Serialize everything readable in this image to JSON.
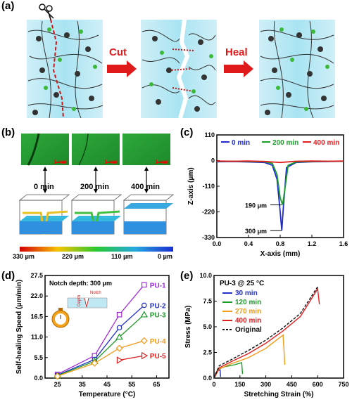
{
  "panels": {
    "a": "(a)",
    "b": "(b)",
    "c": "(c)",
    "d": "(d)",
    "e": "(e)"
  },
  "panel_a": {
    "cut_label": "Cut",
    "heal_label": "Heal"
  },
  "panel_b": {
    "times": [
      "0 min",
      "200 min",
      "400 min"
    ],
    "scale_bar": "1 mm",
    "colorbar_labels": [
      "330 μm",
      "220 μm",
      "110 μm",
      "0 μm"
    ]
  },
  "chart_data": [
    {
      "panel": "(c)",
      "type": "line",
      "xlabel": "X-axis (mm)",
      "ylabel": "Z-axis (μm)",
      "xlim": [
        0.0,
        1.6
      ],
      "ylim": [
        -330,
        110
      ],
      "xticks": [
        "0.0",
        "0.4",
        "0.8",
        "1.2",
        "1.6"
      ],
      "yticks": [
        "110",
        "0",
        "-110",
        "-220",
        "-330"
      ],
      "legend_position": "top",
      "annotations": [
        "190 μm",
        "300 μm"
      ],
      "series": [
        {
          "name": "0 min",
          "color": "#1f2bd1",
          "x": [
            0.0,
            0.2,
            0.4,
            0.6,
            0.7,
            0.76,
            0.8,
            0.82,
            0.84,
            0.88,
            1.0,
            1.2,
            1.4,
            1.6
          ],
          "y": [
            -5,
            -4,
            -6,
            -8,
            -20,
            -80,
            -220,
            -300,
            -200,
            -30,
            -8,
            -5,
            -4,
            -3
          ]
        },
        {
          "name": "200 min",
          "color": "#1c9e2a",
          "x": [
            0.0,
            0.2,
            0.4,
            0.6,
            0.7,
            0.76,
            0.8,
            0.83,
            0.86,
            0.9,
            1.0,
            1.2,
            1.4,
            1.6
          ],
          "y": [
            -3,
            -3,
            -4,
            -5,
            -12,
            -60,
            -160,
            -190,
            -120,
            -20,
            -6,
            -4,
            -3,
            -3
          ]
        },
        {
          "name": "400 min",
          "color": "#e02020",
          "x": [
            0.0,
            0.2,
            0.4,
            0.6,
            0.8,
            1.0,
            1.2,
            1.4,
            1.6
          ],
          "y": [
            -2,
            -3,
            -2,
            -4,
            -8,
            -3,
            -2,
            -3,
            -2
          ]
        }
      ]
    },
    {
      "panel": "(d)",
      "type": "line",
      "xlabel": "Temperature (°C)",
      "ylabel": "Self-healing Speed (μm/min)",
      "xlim": [
        20,
        70
      ],
      "ylim": [
        0,
        27.5
      ],
      "xticks": [
        "25",
        "35",
        "45",
        "55",
        "65"
      ],
      "yticks": [
        "0.0",
        "5.5",
        "11.0",
        "16.5",
        "22.0",
        "27.5"
      ],
      "annotations": [
        "Notch depth: 300 μm",
        "Notch",
        "Depth"
      ],
      "series": [
        {
          "name": "PU-1",
          "color": "#a02bd6",
          "marker": "square",
          "x": [
            25,
            40,
            50,
            60
          ],
          "y": [
            1.0,
            6.0,
            17.0,
            25.0
          ]
        },
        {
          "name": "PU-2",
          "color": "#2030c8",
          "marker": "circle",
          "x": [
            25,
            40,
            50,
            60
          ],
          "y": [
            0.8,
            5.0,
            13.5,
            19.5
          ]
        },
        {
          "name": "PU-3",
          "color": "#1e9a2a",
          "marker": "triangle",
          "x": [
            25,
            40,
            50,
            60
          ],
          "y": [
            0.7,
            4.5,
            11.0,
            17.0
          ]
        },
        {
          "name": "PU-4",
          "color": "#f29a1a",
          "marker": "diamond",
          "x": [
            25,
            40,
            50,
            60
          ],
          "y": [
            0.5,
            4.0,
            8.0,
            10.0
          ]
        },
        {
          "name": "PU-5",
          "color": "#e02020",
          "marker": "triangle-right",
          "x": [
            50,
            60
          ],
          "y": [
            4.8,
            6.0
          ]
        }
      ]
    },
    {
      "panel": "(e)",
      "type": "line",
      "title": "PU-3 @ 25 °C",
      "xlabel": "Stretching Strain (%)",
      "ylabel": "Stress (MPa)",
      "xlim": [
        0,
        750
      ],
      "ylim": [
        0,
        10.0
      ],
      "xticks": [
        "0",
        "150",
        "300",
        "450",
        "600",
        "750"
      ],
      "yticks": [
        "0.0",
        "2.5",
        "5.0",
        "7.5",
        "10.0"
      ],
      "series": [
        {
          "name": "30 min",
          "color": "#2030c8",
          "x": [
            0,
            10,
            20,
            35,
            38
          ],
          "y": [
            0,
            0.5,
            0.7,
            0.8,
            0.1
          ]
        },
        {
          "name": "120 min",
          "color": "#1e9a2a",
          "x": [
            0,
            20,
            60,
            120,
            160,
            165
          ],
          "y": [
            0,
            0.8,
            1.1,
            1.3,
            1.5,
            0.4
          ]
        },
        {
          "name": "270 min",
          "color": "#f29a1a",
          "x": [
            0,
            30,
            100,
            200,
            300,
            400,
            410
          ],
          "y": [
            0,
            0.9,
            1.4,
            2.0,
            2.9,
            4.2,
            1.3
          ]
        },
        {
          "name": "400 min",
          "color": "#e02020",
          "x": [
            0,
            30,
            100,
            200,
            300,
            400,
            500,
            600,
            610
          ],
          "y": [
            0,
            1.0,
            1.6,
            2.4,
            3.4,
            4.6,
            6.0,
            8.7,
            7.2
          ]
        },
        {
          "name": "Original",
          "color": "#111111",
          "dashed": true,
          "x": [
            0,
            30,
            100,
            200,
            300,
            400,
            500,
            600
          ],
          "y": [
            0,
            1.2,
            1.8,
            2.7,
            3.7,
            4.9,
            6.3,
            8.9
          ]
        }
      ]
    }
  ]
}
